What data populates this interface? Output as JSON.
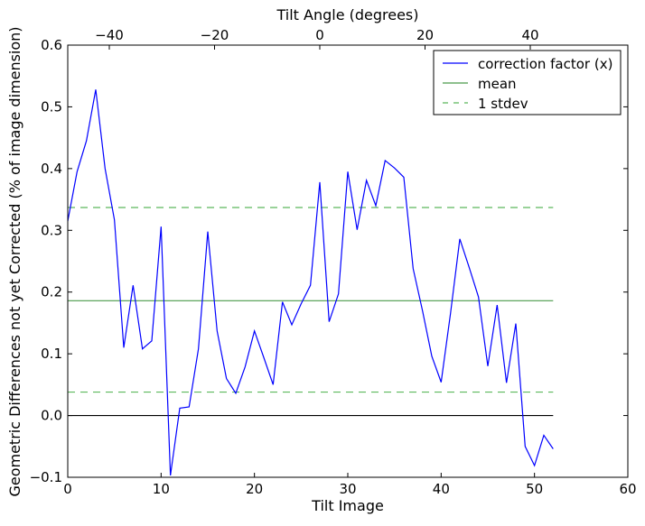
{
  "chart_data": {
    "type": "line",
    "xlabel": "Tilt Image",
    "ylabel": "Geometric Differences not yet Corrected (% of image dimension)",
    "top_xlabel": "Tilt Angle (degrees)",
    "xlim": [
      0,
      60
    ],
    "ylim": [
      -0.1,
      0.6
    ],
    "xticks": [
      0,
      10,
      20,
      30,
      40,
      50,
      60
    ],
    "yticks": [
      -0.1,
      0.0,
      0.1,
      0.2,
      0.3,
      0.4,
      0.5,
      0.6
    ],
    "xtick_labels": [
      "0",
      "10",
      "20",
      "30",
      "40",
      "50",
      "60"
    ],
    "ytick_labels": [
      "−0.1",
      "0.0",
      "0.1",
      "0.2",
      "0.3",
      "0.4",
      "0.5",
      "0.6"
    ],
    "top_ticks": [
      -40,
      -20,
      0,
      20,
      40
    ],
    "top_tick_labels": [
      "−40",
      "−20",
      "0",
      "20",
      "40"
    ],
    "top_axis_map": {
      "tilt_zero_at_image": 27,
      "degrees_per_image": 1.774
    },
    "legend_position": "top-right",
    "series": [
      {
        "name": "correction factor (x)",
        "color": "#0000ff",
        "style": "solid",
        "x": [
          0,
          1,
          2,
          3,
          4,
          5,
          6,
          7,
          8,
          9,
          10,
          11,
          12,
          13,
          14,
          15,
          16,
          17,
          18,
          19,
          20,
          21,
          22,
          23,
          24,
          25,
          26,
          27,
          28,
          29,
          30,
          31,
          32,
          33,
          34,
          35,
          36,
          37,
          38,
          39,
          40,
          41,
          42,
          43,
          44,
          45,
          46,
          47,
          48,
          49,
          50,
          51,
          52
        ],
        "y": [
          0.315,
          0.395,
          0.445,
          0.528,
          0.4,
          0.317,
          0.11,
          0.211,
          0.108,
          0.121,
          0.306,
          -0.097,
          0.012,
          0.014,
          0.108,
          0.298,
          0.137,
          0.06,
          0.036,
          0.079,
          0.137,
          0.094,
          0.05,
          0.184,
          0.147,
          0.181,
          0.211,
          0.378,
          0.152,
          0.197,
          0.395,
          0.301,
          0.381,
          0.34,
          0.413,
          0.401,
          0.386,
          0.238,
          0.17,
          0.096,
          0.054,
          0.165,
          0.286,
          0.24,
          0.192,
          0.08,
          0.179,
          0.053,
          0.149,
          -0.05,
          -0.081,
          -0.032,
          -0.054
        ]
      },
      {
        "name": "mean",
        "color": "#4a9a4a",
        "style": "solid",
        "x": [
          0,
          52
        ],
        "y": [
          0.186,
          0.186
        ]
      },
      {
        "name": "1 stdev",
        "color": "#5cb85c",
        "style": "dashed",
        "x": [
          0,
          52
        ],
        "y": [
          0.337,
          0.337
        ],
        "y2": [
          0.038,
          0.038
        ]
      },
      {
        "name": "zero",
        "color": "#000000",
        "style": "solid",
        "x": [
          0,
          52
        ],
        "y": [
          0,
          0
        ],
        "in_legend": false
      }
    ]
  }
}
